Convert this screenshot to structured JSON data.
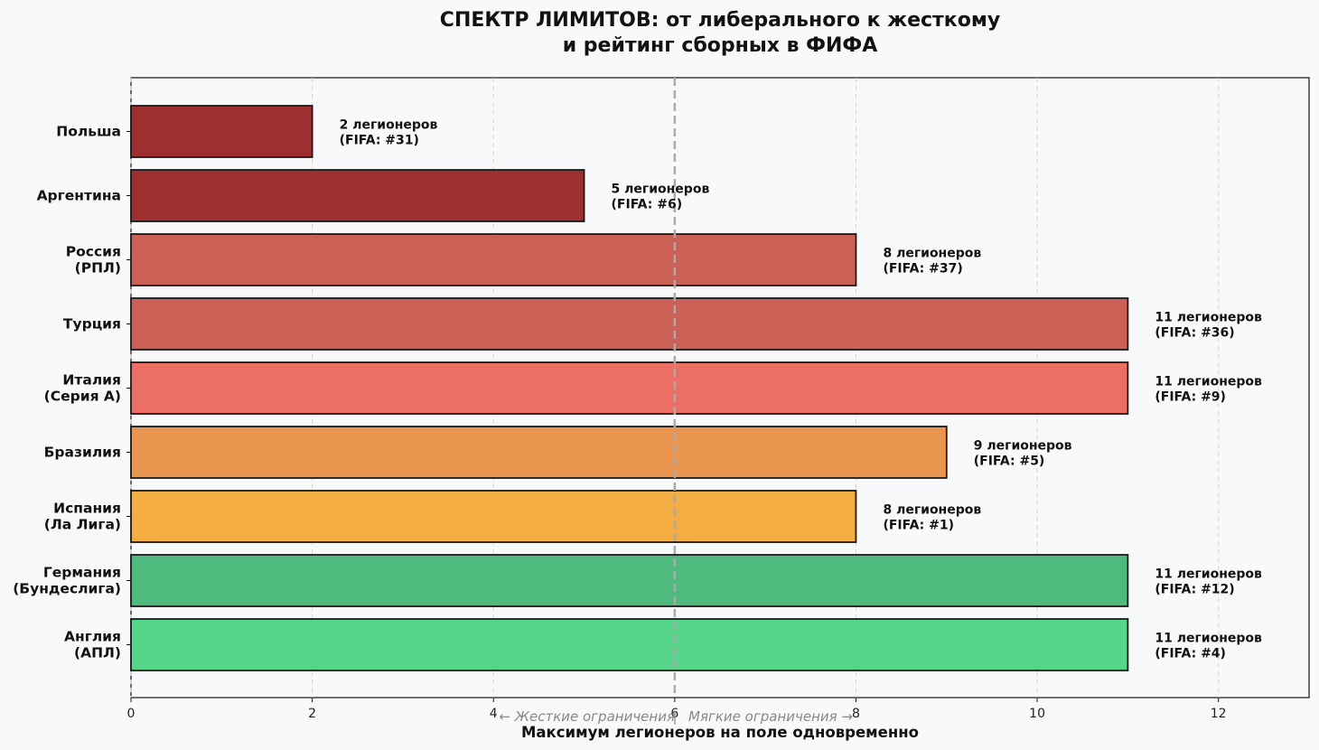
{
  "chart_data": {
    "type": "bar",
    "orientation": "horizontal",
    "title_lines": [
      "СПЕКТР ЛИМИТОВ: от либерального к жесткому",
      "и рейтинг сборных в ФИФА"
    ],
    "xlabel": "Максимум легионеров на поле одновременно",
    "ylabel": "",
    "xlim": [
      0,
      13
    ],
    "xticks": [
      0,
      2,
      4,
      6,
      8,
      10,
      12
    ],
    "grid": "x, dashed",
    "reference_line": {
      "x": 6,
      "style": "dashed",
      "color": "#aaaaaa"
    },
    "annotation": {
      "left": "← Жесткие ограничения",
      "separator": "|",
      "right": "Мягкие ограничения →"
    },
    "bars": [
      {
        "label_lines": [
          "Польша"
        ],
        "value": 2,
        "fifa_rank": 31,
        "annotation_lines": [
          "2 легионеров",
          "(FIFA: #31)"
        ],
        "color": "#9e2f31"
      },
      {
        "label_lines": [
          "Аргентина"
        ],
        "value": 5,
        "fifa_rank": 6,
        "annotation_lines": [
          "5 легионеров",
          "(FIFA: #6)"
        ],
        "color": "#9e2f31"
      },
      {
        "label_lines": [
          "Россия",
          "(РПЛ)"
        ],
        "value": 8,
        "fifa_rank": 37,
        "annotation_lines": [
          "8 легионеров",
          "(FIFA: #37)"
        ],
        "color": "#cb6057"
      },
      {
        "label_lines": [
          "Турция"
        ],
        "value": 11,
        "fifa_rank": 36,
        "annotation_lines": [
          "11 легионеров",
          "(FIFA: #36)"
        ],
        "color": "#cb6057"
      },
      {
        "label_lines": [
          "Италия",
          "(Серия А)"
        ],
        "value": 11,
        "fifa_rank": 9,
        "annotation_lines": [
          "11 легионеров",
          "(FIFA: #9)"
        ],
        "color": "#eb6f62"
      },
      {
        "label_lines": [
          "Бразилия"
        ],
        "value": 9,
        "fifa_rank": 5,
        "annotation_lines": [
          "9 легионеров",
          "(FIFA: #5)"
        ],
        "color": "#ea954f"
      },
      {
        "label_lines": [
          "Испания",
          "(Ла Лига)"
        ],
        "value": 8,
        "fifa_rank": 1,
        "annotation_lines": [
          "8 легионеров",
          "(FIFA: #1)"
        ],
        "color": "#f4ad41"
      },
      {
        "label_lines": [
          "Германия",
          "(Бундеслига)"
        ],
        "value": 11,
        "fifa_rank": 12,
        "annotation_lines": [
          "11 легионеров",
          "(FIFA: #12)"
        ],
        "color": "#4fba7e"
      },
      {
        "label_lines": [
          "Англия",
          "(АПЛ)"
        ],
        "value": 11,
        "fifa_rank": 4,
        "annotation_lines": [
          "11 легионеров",
          "(FIFA: #4)"
        ],
        "color": "#55d48a"
      }
    ]
  }
}
